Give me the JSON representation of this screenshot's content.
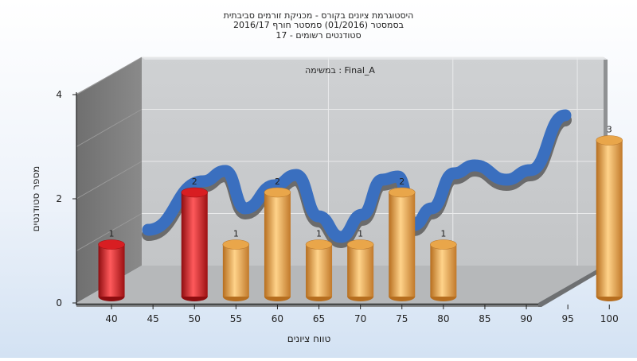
{
  "chart_data": {
    "type": "bar",
    "title_lines": [
      "היסטוגרמת ציונים בקורס - מכניקת זורמים סביבתית",
      "בסמסטר  (01/2016)  סמסטר חורף 2016/17",
      "סטודנטים רשומים - 17"
    ],
    "subtitle": "במשימה : Final_A",
    "xlabel": "טווח ציונים",
    "ylabel": "מספר סטודנטים",
    "x_ticks": [
      "40",
      "45",
      "50",
      "55",
      "60",
      "65",
      "70",
      "75",
      "80",
      "85",
      "90",
      "95",
      "100"
    ],
    "y_ticks": [
      "0",
      "2",
      "4"
    ],
    "ylim": [
      0,
      4
    ],
    "grid": true,
    "bars": [
      {
        "x": 40,
        "value": 1,
        "label": "1",
        "color": "red"
      },
      {
        "x": 50,
        "value": 2,
        "label": "2",
        "color": "red"
      },
      {
        "x": 55,
        "value": 1,
        "label": "1",
        "color": "orange"
      },
      {
        "x": 60,
        "value": 2,
        "label": "2",
        "color": "orange"
      },
      {
        "x": 65,
        "value": 1,
        "label": "1",
        "color": "orange"
      },
      {
        "x": 70,
        "value": 1,
        "label": "1",
        "color": "orange"
      },
      {
        "x": 75,
        "value": 2,
        "label": "2",
        "color": "orange"
      },
      {
        "x": 80,
        "value": 1,
        "label": "1",
        "color": "orange"
      },
      {
        "x": 100,
        "value": 3,
        "label": "3",
        "color": "orange"
      }
    ],
    "colors": {
      "red": "#e8262a",
      "orange": "#f0b04e",
      "curve": "#3a6fbf",
      "curve_shadow": "#5a5a5a",
      "back_wall": "#c4c6c8",
      "side_wall": "#7e7e7e",
      "floor": "#b4b6b8"
    }
  }
}
